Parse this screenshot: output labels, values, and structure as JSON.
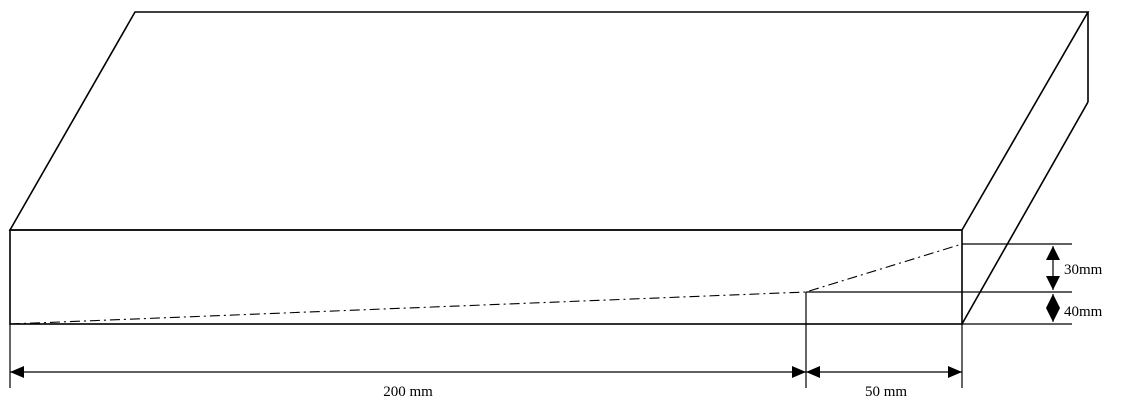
{
  "dimensions": {
    "length_main": "200 mm",
    "length_end": "50 mm",
    "height_upper": "30mm",
    "height_lower": "40mm"
  }
}
